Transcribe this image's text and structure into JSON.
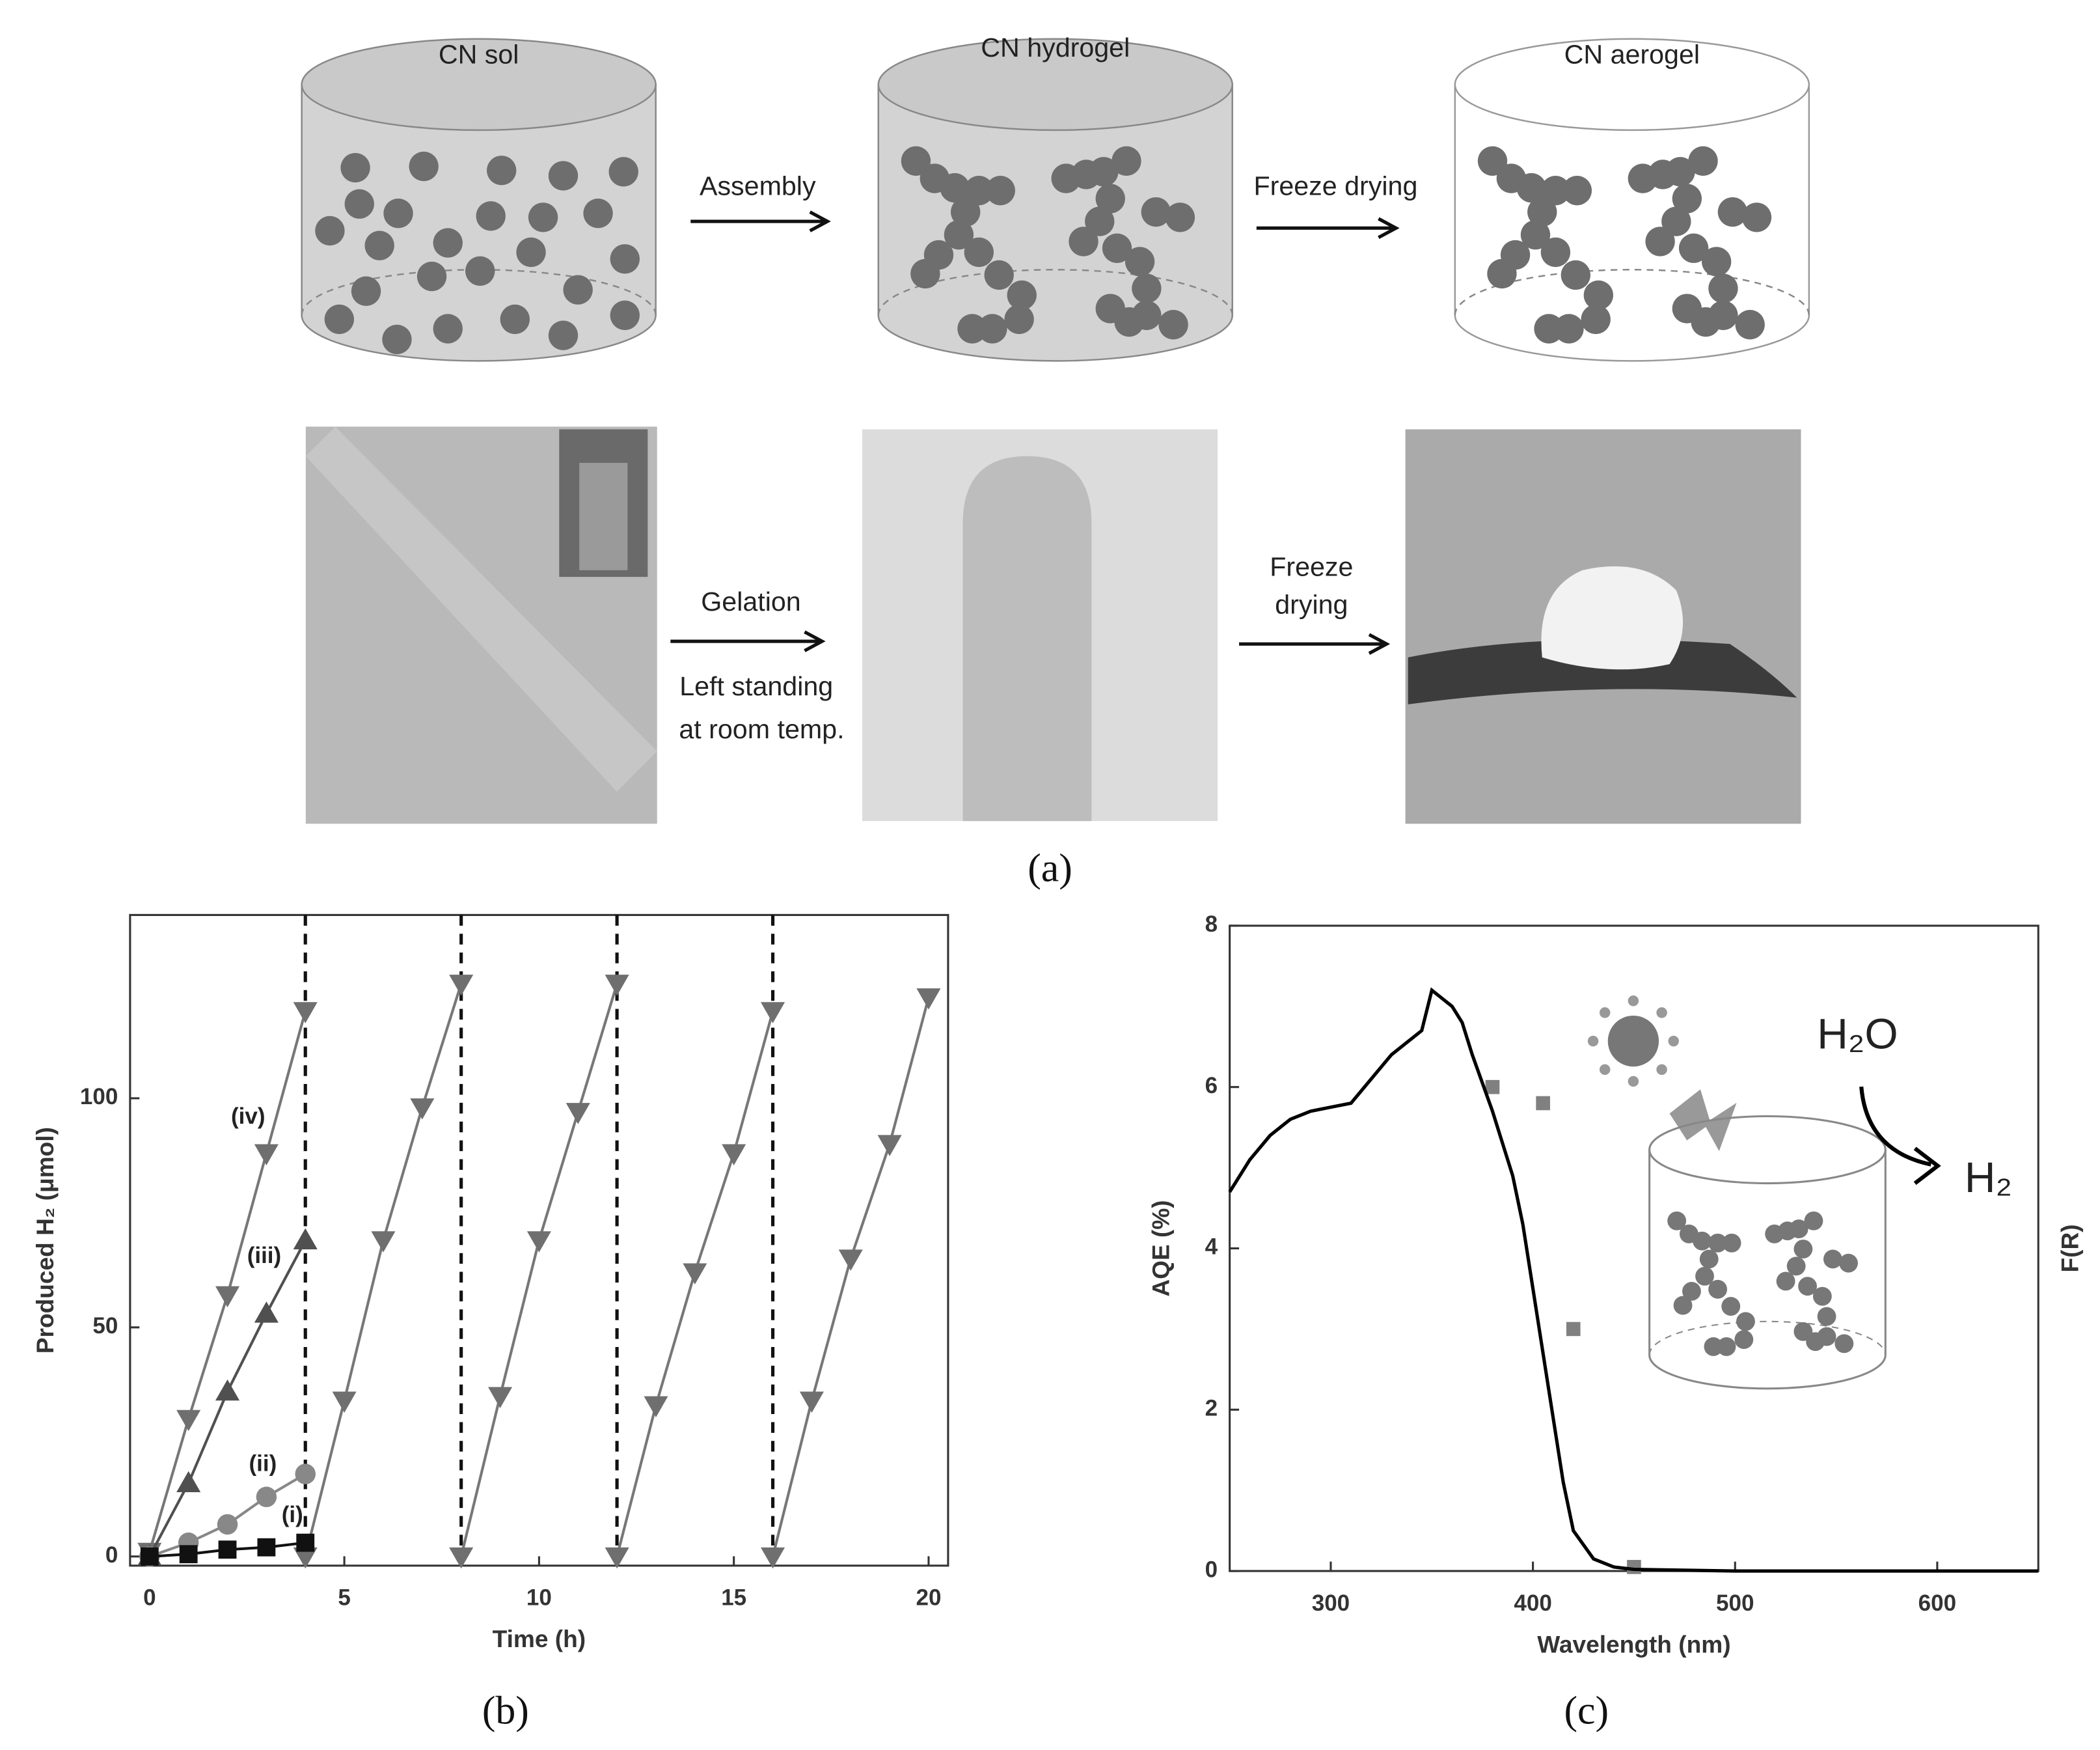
{
  "diagram": {
    "cylinders": [
      "CN sol",
      "CN hydrogel",
      "CN aerogel"
    ],
    "top_arrows": [
      "Assembly",
      "Freeze drying"
    ],
    "gelation": "Gelation",
    "standing": [
      "Left standing",
      "at room temp."
    ],
    "photo_freeze": [
      "Freeze",
      "drying"
    ]
  },
  "panel_labels": [
    "(a)",
    "(b)",
    "(c)"
  ],
  "chart_data": [
    {
      "type": "line",
      "xlabel": "Time (h)",
      "ylabel": "Produced H₂ (μmol)",
      "xlim": [
        -0.5,
        20.5
      ],
      "ylim": [
        -2,
        140
      ],
      "xticks": [
        0,
        5,
        10,
        15,
        20
      ],
      "yticks": [
        0,
        50,
        100
      ],
      "vlines": [
        4,
        8,
        12,
        16
      ],
      "series": [
        {
          "name": "(iv)",
          "color": "#6f6f6f",
          "marker": "triangle-down",
          "x": [
            0,
            1,
            2,
            3,
            4,
            4,
            4,
            5,
            6,
            7,
            8,
            8,
            8,
            9,
            10,
            11,
            12,
            12,
            12,
            13,
            14,
            15,
            16,
            16,
            16,
            17,
            18,
            19,
            20
          ],
          "values": [
            1,
            30,
            57,
            88,
            119,
            null,
            0,
            34,
            69,
            98,
            125,
            null,
            0,
            35,
            69,
            97,
            125,
            null,
            0,
            33,
            62,
            88,
            119,
            null,
            0,
            34,
            65,
            90,
            122
          ]
        },
        {
          "name": "(iii)",
          "color": "#505050",
          "marker": "triangle-up",
          "x": [
            0,
            1,
            2,
            3,
            4
          ],
          "values": [
            0,
            16,
            36,
            53,
            69
          ]
        },
        {
          "name": "(ii)",
          "color": "#888888",
          "marker": "circle",
          "x": [
            0,
            1,
            2,
            3,
            4
          ],
          "values": [
            0,
            3,
            7,
            13,
            18
          ]
        },
        {
          "name": "(i)",
          "color": "#111111",
          "marker": "square",
          "x": [
            0,
            1,
            2,
            3,
            4
          ],
          "values": [
            0,
            0.5,
            1.5,
            2,
            3
          ]
        }
      ]
    },
    {
      "type": "line",
      "xlabel": "Wavelength (nm)",
      "ylabel": "AQE (%)",
      "y2label": "F(R)",
      "xlim": [
        250,
        650
      ],
      "ylim": [
        0,
        8
      ],
      "xticks": [
        300,
        400,
        500,
        600
      ],
      "yticks": [
        0,
        2,
        4,
        6,
        8
      ],
      "inset": [
        "H₂O",
        "H₂"
      ],
      "series": [
        {
          "color": "#808080",
          "marker": "square",
          "x": [
            380,
            405,
            420,
            450
          ],
          "values": [
            6,
            5.8,
            3,
            0.05
          ]
        },
        {
          "color": "#000000",
          "marker": "none",
          "x": [
            250,
            260,
            270,
            280,
            290,
            300,
            310,
            320,
            330,
            340,
            345,
            350,
            355,
            360,
            365,
            370,
            380,
            390,
            395,
            400,
            405,
            410,
            415,
            420,
            430,
            440,
            450,
            500,
            550,
            600,
            650
          ],
          "values": [
            4.7,
            5.1,
            5.4,
            5.6,
            5.7,
            5.75,
            5.8,
            6.1,
            6.4,
            6.6,
            6.7,
            7.2,
            7.1,
            7.0,
            6.8,
            6.4,
            5.7,
            4.9,
            4.3,
            3.5,
            2.7,
            1.9,
            1.1,
            0.5,
            0.15,
            0.05,
            0.02,
            0,
            0,
            0,
            0
          ]
        }
      ]
    }
  ]
}
